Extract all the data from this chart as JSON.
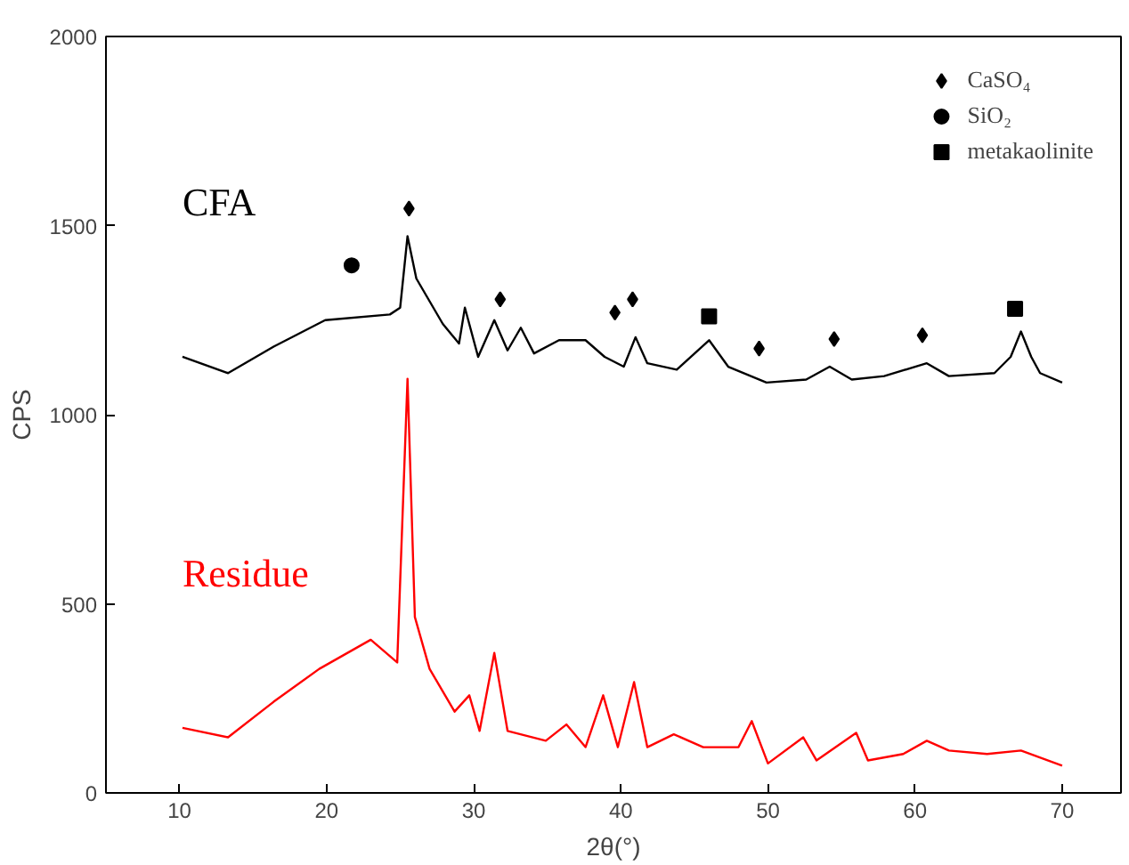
{
  "chart_data": {
    "type": "line",
    "xlabel": "2θ(°)",
    "ylabel": "CPS",
    "xlim": [
      5,
      74
    ],
    "ylim": [
      0,
      2000
    ],
    "xticks": [
      10,
      20,
      30,
      40,
      50,
      60,
      70
    ],
    "yticks": [
      0,
      500,
      1000,
      1500,
      2000
    ],
    "grid": false,
    "legend": "top right",
    "line_style": "solid",
    "marker": "none",
    "series": [
      {
        "name": "CFA",
        "color": "#000000",
        "x": [
          10.2,
          13.3,
          16.4,
          19.9,
          24.3,
          25.0,
          25.5,
          26.1,
          27.9,
          29.0,
          29.4,
          30.3,
          31.4,
          32.3,
          33.2,
          34.1,
          35.8,
          37.6,
          38.9,
          40.2,
          41.0,
          41.8,
          43.8,
          46.0,
          47.3,
          49.9,
          52.6,
          54.2,
          55.7,
          57.9,
          60.8,
          62.3,
          65.4,
          66.5,
          67.2,
          67.9,
          68.5,
          70.0
        ],
        "values": [
          1153,
          1110,
          1180,
          1250,
          1265,
          1283,
          1472,
          1360,
          1240,
          1188,
          1283,
          1153,
          1250,
          1170,
          1230,
          1162,
          1197,
          1197,
          1153,
          1127,
          1205,
          1136,
          1119,
          1197,
          1127,
          1085,
          1093,
          1127,
          1093,
          1102,
          1136,
          1102,
          1110,
          1153,
          1220,
          1153,
          1110,
          1085
        ]
      },
      {
        "name": "Residue",
        "color": "#ff0000",
        "x": [
          10.2,
          13.3,
          16.4,
          19.5,
          23.0,
          24.8,
          25.5,
          26.0,
          27.0,
          28.7,
          29.7,
          30.4,
          31.4,
          32.3,
          34.9,
          36.3,
          37.6,
          38.8,
          39.8,
          40.9,
          41.8,
          43.6,
          45.6,
          48.0,
          48.9,
          50.0,
          52.4,
          53.3,
          56.0,
          56.8,
          59.2,
          60.8,
          62.3,
          64.9,
          67.2,
          70.0
        ],
        "values": [
          172,
          147,
          241,
          328,
          405,
          345,
          1095,
          465,
          328,
          215,
          258,
          164,
          370,
          164,
          138,
          181,
          121,
          258,
          121,
          293,
          121,
          155,
          121,
          121,
          190,
          78,
          147,
          86,
          159,
          86,
          103,
          138,
          112,
          103,
          112,
          72
        ]
      },
      {
        "name": "CaSO₄",
        "type": "scatter",
        "marker": "diamond",
        "color": "#000000",
        "x": [
          25.6,
          31.8,
          39.6,
          40.8,
          49.4,
          54.5,
          60.5
        ],
        "values": [
          1545,
          1305,
          1270,
          1305,
          1175,
          1200,
          1210
        ]
      },
      {
        "name": "SiO₂",
        "type": "scatter",
        "marker": "circle",
        "color": "#000000",
        "x": [
          21.7
        ],
        "values": [
          1395
        ]
      },
      {
        "name": "metakaolinite",
        "type": "scatter",
        "marker": "square",
        "color": "#000000",
        "x": [
          46.0,
          66.8
        ],
        "values": [
          1260,
          1280
        ]
      }
    ]
  }
}
